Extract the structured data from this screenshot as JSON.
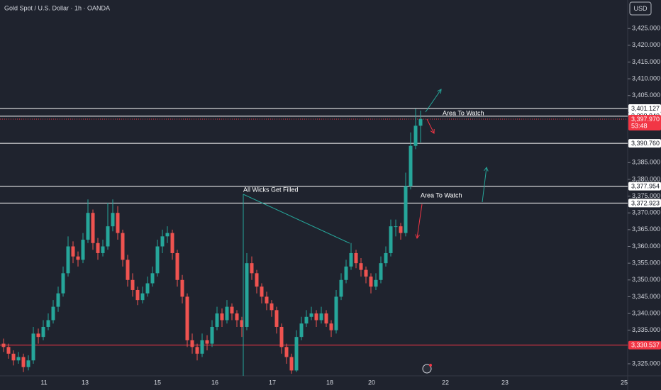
{
  "chart_data": {
    "type": "candlestick",
    "title": "Gold Spot / U.S. Dollar · 1h · OANDA",
    "currency": "USD",
    "up_color": "#26a69a",
    "down_color": "#ef5350",
    "ylim": [
      3321.4,
      3433.5
    ],
    "yticks": [
      {
        "value": 3325,
        "label": "3,325.000"
      },
      {
        "value": 3335,
        "label": "3,335.000"
      },
      {
        "value": 3340,
        "label": "3,340.000"
      },
      {
        "value": 3345,
        "label": "3,345.000"
      },
      {
        "value": 3350,
        "label": "3,350.000"
      },
      {
        "value": 3355,
        "label": "3,355.000"
      },
      {
        "value": 3360,
        "label": "3,360.000"
      },
      {
        "value": 3365,
        "label": "3,365.000"
      },
      {
        "value": 3370,
        "label": "3,370.000"
      },
      {
        "value": 3375,
        "label": "3,375.000"
      },
      {
        "value": 3380,
        "label": "3,380.000"
      },
      {
        "value": 3385,
        "label": "3,385.000"
      },
      {
        "value": 3405,
        "label": "3,405.000"
      },
      {
        "value": 3410,
        "label": "3,410.000"
      },
      {
        "value": 3415,
        "label": "3,415.000"
      },
      {
        "value": 3420,
        "label": "3,420.000"
      },
      {
        "value": 3425,
        "label": "3,425.000"
      }
    ],
    "x_labels": [
      "11",
      "13",
      "15",
      "16",
      "17",
      "18",
      "20",
      "22",
      "23",
      "25"
    ],
    "levels": [
      {
        "value": 3401.127,
        "label": "3,401.127",
        "color": "#ffffff"
      },
      {
        "value": 3398.84,
        "label": "3,398.840",
        "color": "#ffffff"
      },
      {
        "value": 3390.76,
        "label": "3,390.760",
        "color": "#ffffff"
      },
      {
        "value": 3377.954,
        "label": "3,377.954",
        "color": "#ffffff"
      },
      {
        "value": 3372.923,
        "label": "3,372.923",
        "color": "#ffffff"
      },
      {
        "value": 3330.537,
        "label": "3,330.537",
        "color": "#f23645"
      }
    ],
    "current": {
      "value": 3397.97,
      "label": "3,397.970",
      "countdown": "53:48",
      "color": "#f23645"
    },
    "annotations": [
      "All Wicks Get Filled",
      "Area To Watch",
      "Area To Watch"
    ],
    "candles": [
      [
        3331,
        3332.5,
        3328.5,
        3330
      ],
      [
        3330,
        3331,
        3326.5,
        3328
      ],
      [
        3328,
        3329,
        3324.5,
        3326
      ],
      [
        3326,
        3328.5,
        3325,
        3327
      ],
      [
        3327,
        3328,
        3322.5,
        3324
      ],
      [
        3324,
        3327.5,
        3323,
        3326
      ],
      [
        3326,
        3336,
        3325,
        3334
      ],
      [
        3334,
        3335.5,
        3331,
        3333
      ],
      [
        3333,
        3338,
        3332,
        3336
      ],
      [
        3336,
        3340,
        3335,
        3338
      ],
      [
        3338,
        3344,
        3337,
        3342
      ],
      [
        3342,
        3348,
        3340.5,
        3346
      ],
      [
        3346,
        3354,
        3345,
        3352
      ],
      [
        3352,
        3363,
        3351,
        3360
      ],
      [
        3360,
        3361.5,
        3355,
        3357
      ],
      [
        3357,
        3358.5,
        3354,
        3356
      ],
      [
        3356,
        3364,
        3355,
        3362
      ],
      [
        3362,
        3374,
        3361,
        3370
      ],
      [
        3370,
        3371,
        3359,
        3361
      ],
      [
        3361,
        3362.5,
        3356,
        3358
      ],
      [
        3358,
        3362,
        3357,
        3360
      ],
      [
        3360,
        3373,
        3359,
        3366
      ],
      [
        3366,
        3374,
        3364.5,
        3370
      ],
      [
        3370,
        3372,
        3362,
        3364
      ],
      [
        3364,
        3365,
        3354,
        3356
      ],
      [
        3356,
        3357.5,
        3348,
        3350
      ],
      [
        3350,
        3352,
        3345,
        3347
      ],
      [
        3347,
        3348,
        3342.5,
        3344
      ],
      [
        3344,
        3348,
        3343,
        3346
      ],
      [
        3346,
        3351,
        3345,
        3349
      ],
      [
        3349,
        3354,
        3348,
        3352
      ],
      [
        3352,
        3362,
        3351,
        3360
      ],
      [
        3360,
        3365,
        3358,
        3363
      ],
      [
        3363,
        3366,
        3361,
        3364
      ],
      [
        3364,
        3365,
        3356,
        3358
      ],
      [
        3358,
        3359,
        3348,
        3350
      ],
      [
        3350,
        3351.5,
        3343,
        3345
      ],
      [
        3345,
        3346,
        3330,
        3332
      ],
      [
        3332,
        3334,
        3328,
        3330
      ],
      [
        3330,
        3331,
        3326,
        3328
      ],
      [
        3328,
        3334,
        3327,
        3332
      ],
      [
        3332,
        3333.5,
        3329,
        3331
      ],
      [
        3331,
        3338,
        3330,
        3336
      ],
      [
        3336,
        3342,
        3335,
        3340
      ],
      [
        3340,
        3341.5,
        3336,
        3338
      ],
      [
        3338,
        3344,
        3337,
        3342
      ],
      [
        3342,
        3343,
        3338,
        3340
      ],
      [
        3340,
        3341,
        3336,
        3338
      ],
      [
        3338,
        3339,
        3333,
        3336
      ],
      [
        3336,
        3358,
        3335,
        3355
      ],
      [
        3355,
        3357,
        3350,
        3352
      ],
      [
        3352,
        3353,
        3346,
        3348
      ],
      [
        3348,
        3349,
        3343,
        3345
      ],
      [
        3345,
        3346.5,
        3341,
        3343
      ],
      [
        3343,
        3344,
        3339,
        3341
      ],
      [
        3341,
        3342,
        3334,
        3336
      ],
      [
        3336,
        3337,
        3328,
        3330
      ],
      [
        3330,
        3331,
        3325,
        3327
      ],
      [
        3327,
        3328,
        3322,
        3323
      ],
      [
        3323,
        3335,
        3322.5,
        3333
      ],
      [
        3333,
        3339,
        3332,
        3337
      ],
      [
        3337,
        3341,
        3336,
        3339
      ],
      [
        3339,
        3342,
        3338,
        3340
      ],
      [
        3340,
        3341,
        3336,
        3338
      ],
      [
        3338,
        3342,
        3337,
        3340
      ],
      [
        3340,
        3341,
        3336,
        3337
      ],
      [
        3337,
        3338,
        3333,
        3335
      ],
      [
        3335,
        3347,
        3334,
        3345
      ],
      [
        3345,
        3352,
        3344,
        3350
      ],
      [
        3350,
        3356,
        3349,
        3354
      ],
      [
        3354,
        3361,
        3353,
        3358
      ],
      [
        3358,
        3359,
        3353.5,
        3355
      ],
      [
        3355,
        3356.5,
        3351,
        3353
      ],
      [
        3353,
        3354,
        3349,
        3351
      ],
      [
        3351,
        3352,
        3346,
        3348
      ],
      [
        3348,
        3352,
        3347,
        3350
      ],
      [
        3350,
        3357,
        3349,
        3355
      ],
      [
        3355,
        3360,
        3354,
        3358
      ],
      [
        3358,
        3368,
        3357,
        3366
      ],
      [
        3366,
        3368,
        3363,
        3366
      ],
      [
        3366,
        3367,
        3362,
        3364
      ],
      [
        3364,
        3382,
        3363,
        3378
      ],
      [
        3378,
        3394,
        3377,
        3390
      ],
      [
        3390,
        3401,
        3389,
        3396
      ],
      [
        3396,
        3400.5,
        3391,
        3398
      ]
    ]
  }
}
